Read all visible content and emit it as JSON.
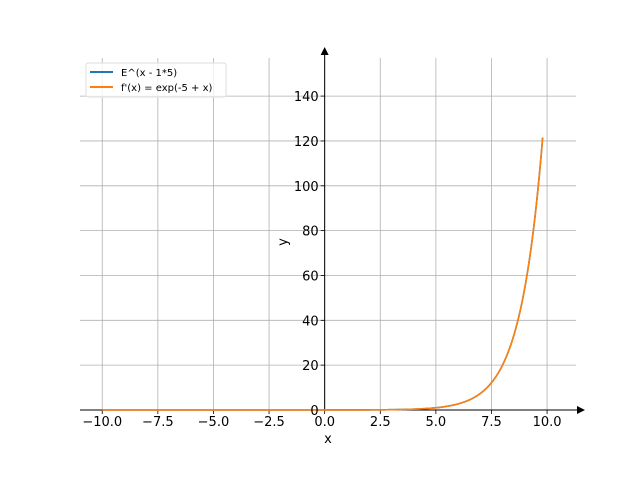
{
  "chart_data": {
    "type": "line",
    "title": "",
    "xlabel": "x",
    "ylabel": "y",
    "xlim": [
      -11.0,
      11.3
    ],
    "ylim": [
      0,
      157
    ],
    "x_ticks": [
      -10.0,
      -7.5,
      -5.0,
      -2.5,
      0.0,
      2.5,
      5.0,
      7.5,
      10.0
    ],
    "x_tick_labels": [
      "−10.0",
      "−7.5",
      "−5.0",
      "−2.5",
      "0.0",
      "2.5",
      "5.0",
      "7.5",
      "10.0"
    ],
    "y_ticks": [
      0,
      20,
      40,
      60,
      80,
      100,
      120,
      140
    ],
    "y_tick_labels": [
      "0",
      "20",
      "40",
      "60",
      "80",
      "100",
      "120",
      "140"
    ],
    "grid": true,
    "legend_position": "top-left",
    "x_range": [
      -10.0,
      9.8
    ],
    "series": [
      {
        "name": "E^(x - 1*5)",
        "color": "#1f77b4",
        "function": "exp(x - 5)"
      },
      {
        "name": "f'(x) = exp(-5 + x)",
        "color": "#ff7f0e",
        "function": "exp(-5 + x)"
      }
    ],
    "points": [
      [
        -10.0,
        0.0
      ],
      [
        -5.0,
        0.0
      ],
      [
        0.0,
        0.01
      ],
      [
        2.5,
        0.08
      ],
      [
        5.0,
        1.0
      ],
      [
        6.0,
        2.7
      ],
      [
        7.0,
        7.4
      ],
      [
        7.5,
        12.2
      ],
      [
        8.0,
        20.1
      ],
      [
        8.5,
        33.1
      ],
      [
        9.0,
        54.6
      ],
      [
        9.5,
        90.0
      ],
      [
        9.8,
        121.5
      ]
    ]
  }
}
